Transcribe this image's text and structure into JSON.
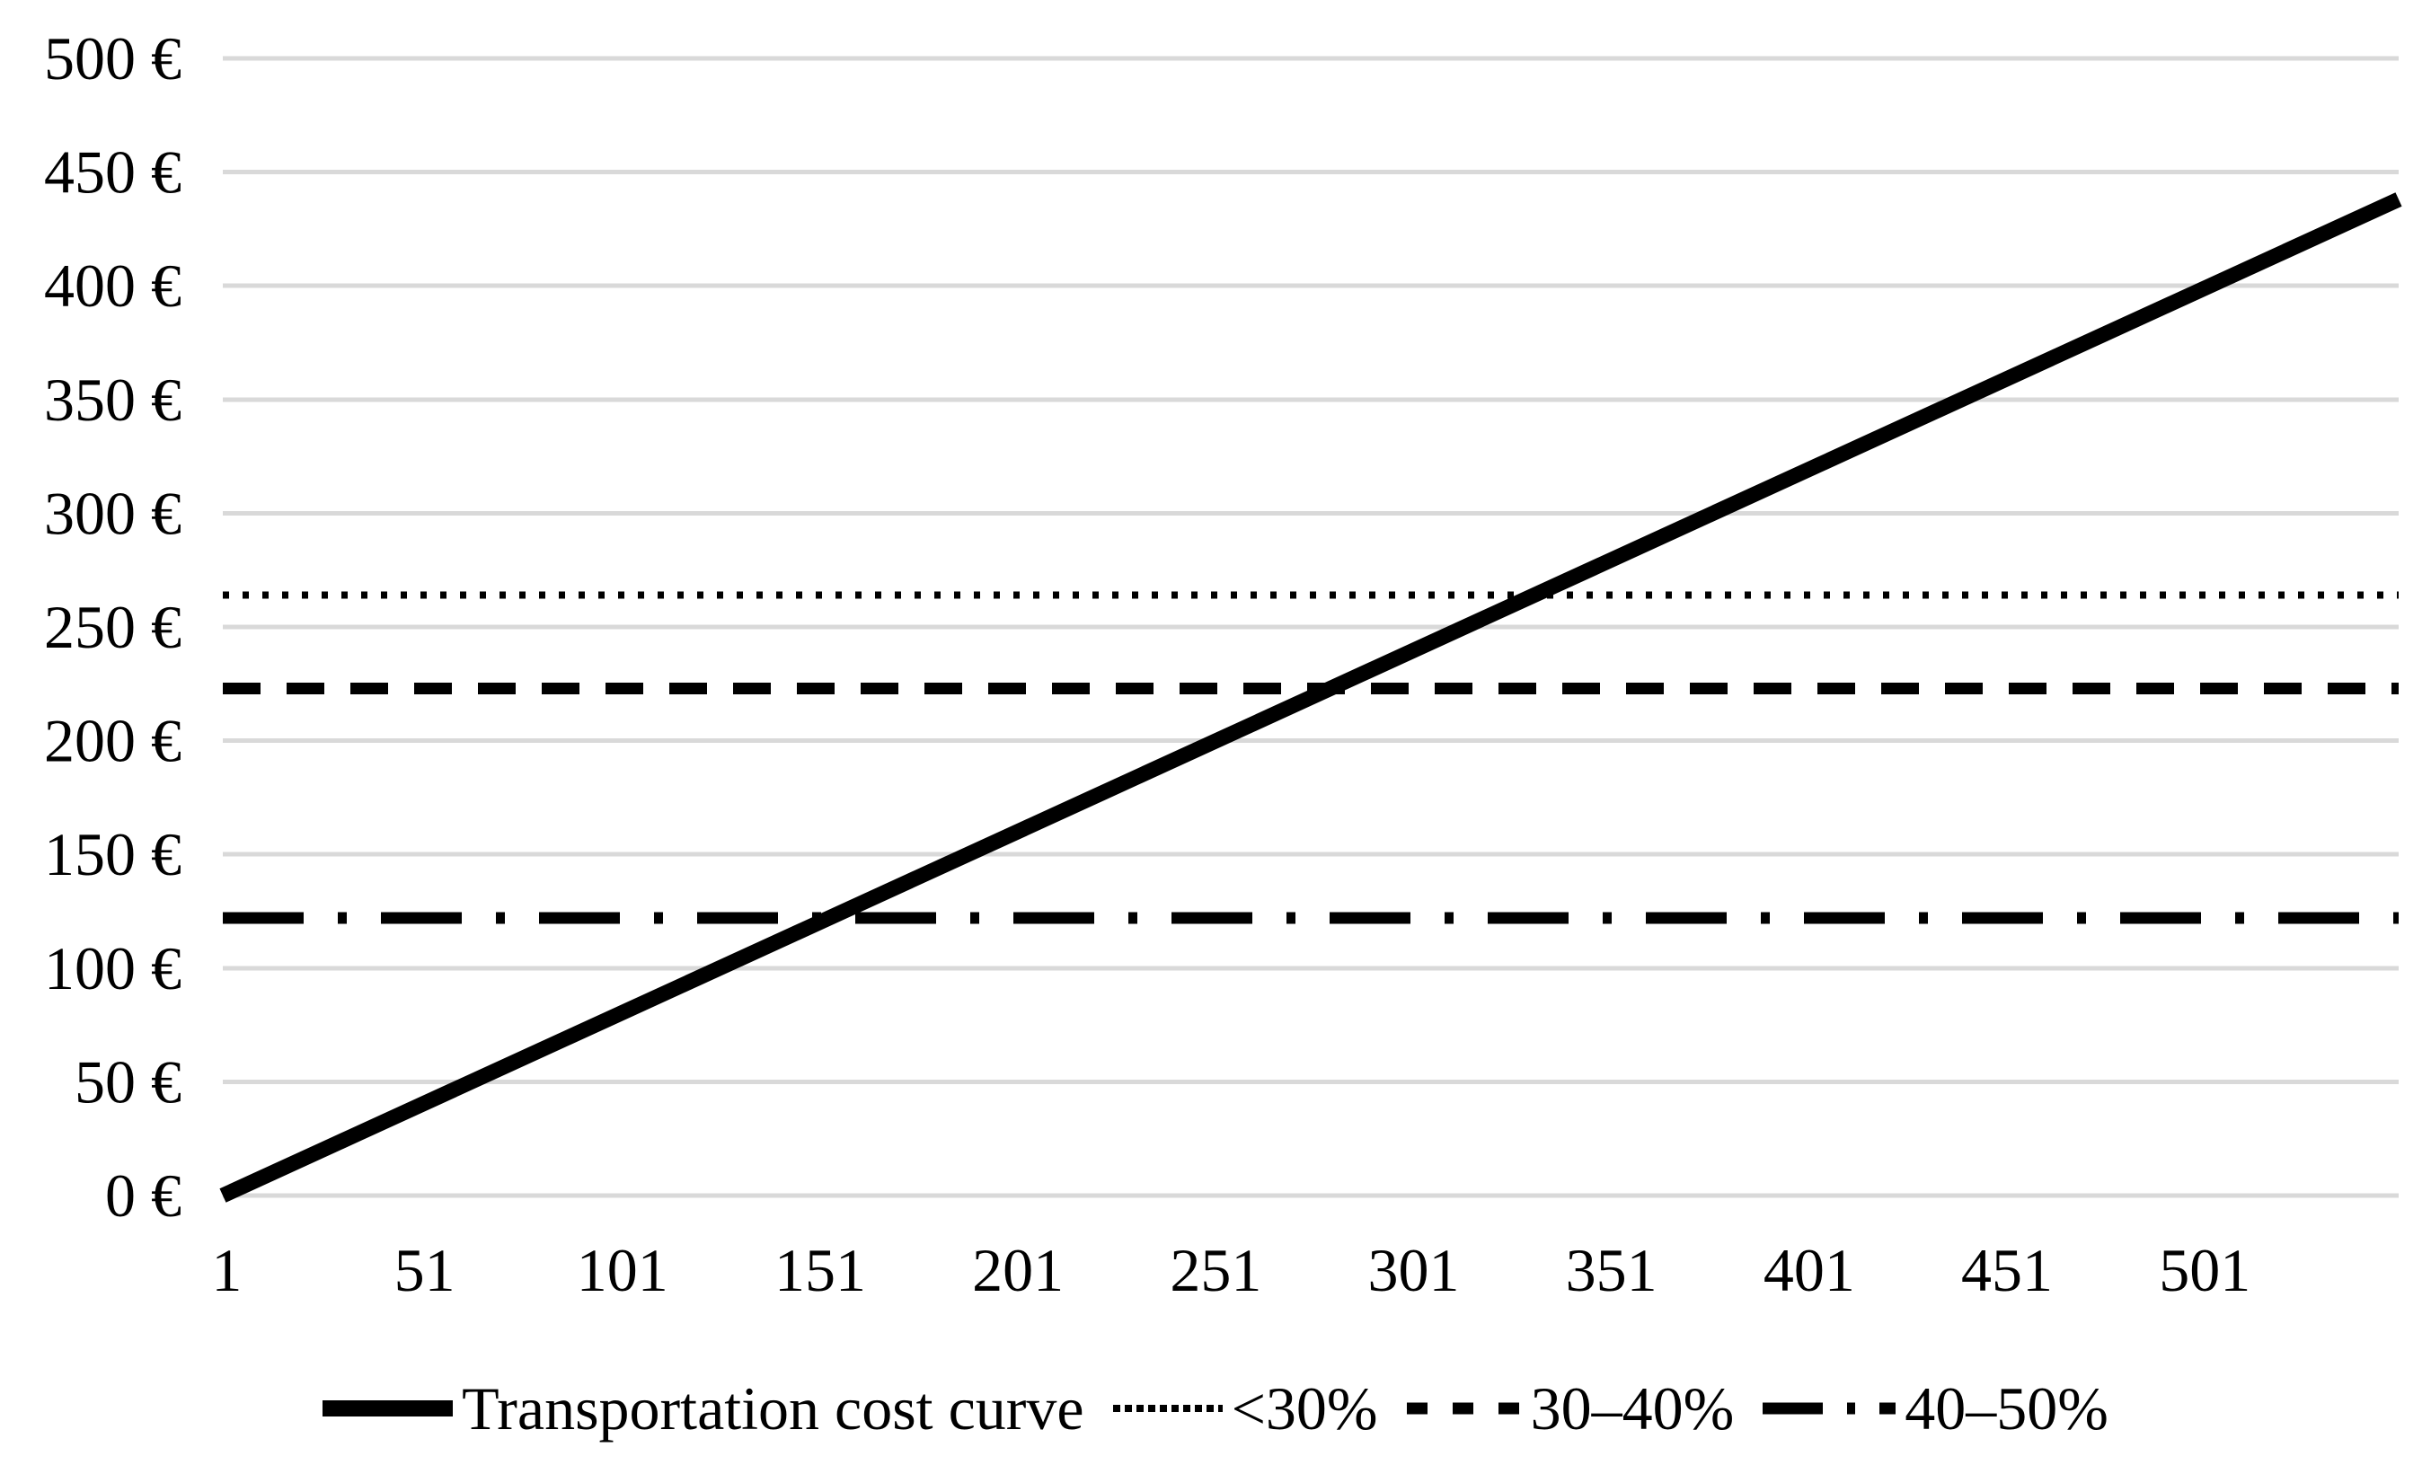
{
  "figure": {
    "background_color": "#FFFFFF",
    "series_color": "#000000",
    "gridline_color": "#D9D9D9",
    "text_color": "#000000"
  },
  "chart_data": {
    "type": "line",
    "title": "",
    "grid": "horizontal-only",
    "legend_position": "bottom",
    "x_axis": {
      "label": "",
      "min": 0,
      "max": 550,
      "tick_values": [
        1,
        51,
        101,
        151,
        201,
        251,
        301,
        351,
        401,
        451,
        501
      ],
      "tick_labels": [
        "1",
        "51",
        "101",
        "151",
        "201",
        "251",
        "301",
        "351",
        "401",
        "451",
        "501"
      ]
    },
    "y_axis": {
      "label": "",
      "min": 0,
      "max": 500,
      "step": 50,
      "unit": "€",
      "tick_values": [
        0,
        50,
        100,
        150,
        200,
        250,
        300,
        350,
        400,
        450,
        500
      ],
      "tick_labels": [
        "0 €",
        "50 €",
        "100 €",
        "150 €",
        "200 €",
        "250 €",
        "300 €",
        "350 €",
        "400 €",
        "450 €",
        "500 €"
      ]
    },
    "series": [
      {
        "name": "Transportation cost curve",
        "kind": "line",
        "style": "solid",
        "points": [
          [
            0,
            0
          ],
          [
            550,
            438
          ]
        ]
      },
      {
        "name": "<30%",
        "kind": "hline",
        "style": "dotted",
        "value": 264
      },
      {
        "name": "30–40%",
        "kind": "hline",
        "style": "dashed",
        "value": 223
      },
      {
        "name": "40–50%",
        "kind": "hline",
        "style": "dashdot",
        "value": 122
      }
    ]
  }
}
